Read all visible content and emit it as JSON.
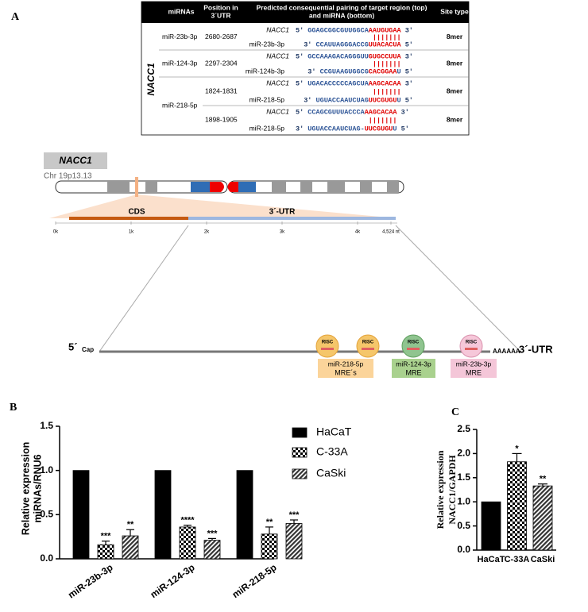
{
  "panel_a": {
    "label": "A",
    "table": {
      "headers": [
        [
          "miRNAs"
        ],
        [
          "Position in",
          "3´UTR"
        ],
        [
          "Predicted consequential pairing of target region (top)",
          "and miRNA (bottom)"
        ],
        [
          "Site type"
        ]
      ],
      "gene": "NACC1",
      "rows": [
        {
          "mirna": "miR-23b-3p",
          "position": "2680-2687",
          "target_name": "NACC1",
          "target_5": "5'",
          "target_seq": "GGAGCGGCGUUGGCA",
          "target_seed": "AAUGUGAA",
          "target_3": "3'",
          "pairing": "|||||||",
          "mirna_name": "miR-23b-3p",
          "mirna_3": "3'",
          "mirna_seq": "CCAUUAGGGACCG",
          "mirna_seed": "UUACACUA",
          "mirna_5": "5'",
          "site": "8mer"
        },
        {
          "mirna": "miR-124-3p",
          "position": "2297-2304",
          "target_name": "NACC1",
          "target_5": "5'",
          "target_seq": "GCCAAAGACAGGGUU",
          "target_seed": "GUGCCUUA",
          "target_3": "3'",
          "pairing": "|||||||",
          "mirna_name": "miR-124b-3p",
          "mirna_3": "3'",
          "mirna_seq": "CCGUAAGUGGCG",
          "mirna_seed": "CACGGAA",
          "mirna_tail": "U",
          "mirna_5": "5'",
          "site": "8mer"
        },
        {
          "mirna": "miR-218-5p",
          "position": "1824-1831",
          "target_name": "NACC1",
          "target_5": "5'",
          "target_seq": "UGACACCCCCAGCUA",
          "target_seed": "AAGCACAA",
          "target_3": "3'",
          "pairing": "|||||||",
          "mirna_name": "miR-218-5p",
          "mirna_3": "3'",
          "mirna_seq": "UGUACCAAUCUAG",
          "mirna_seed": "UUCGUGU",
          "mirna_tail": "U",
          "mirna_5": "5'",
          "site": "8mer"
        },
        {
          "position": "1898-1905",
          "target_name": "NACC1",
          "target_5": "5'",
          "target_seq": "CCAGCGUUUACCCA",
          "target_seed": "AAGCACAA",
          "target_3": "3'",
          "pairing": "|||||||",
          "mirna_name": "miR-218-5p",
          "mirna_3": "3'",
          "mirna_seq": "UGUACCAAUCUAG-",
          "mirna_seed": "UUCGUGU",
          "mirna_tail": "U",
          "mirna_5": "5'",
          "site": "8mer"
        }
      ]
    }
  },
  "diagram": {
    "gene": "NACC1",
    "locus": "Chr 19p13.13",
    "cds": "CDS",
    "utr": "3´-UTR",
    "scale": [
      "0k",
      "1k",
      "2k",
      "3k",
      "4k",
      "4,524 nt"
    ],
    "five_prime": "5´",
    "cap": "Cap",
    "poly_a": "AAAAAA",
    "three_prime": "3´-UTR",
    "risc": [
      "RISC",
      "RISC",
      "RISC",
      "RISC"
    ],
    "mres": [
      {
        "mirna": "miR-218-5p",
        "label": "MRE´s"
      },
      {
        "mirna": "miR-124-3p",
        "label": "MRE"
      },
      {
        "mirna": "miR-23b-3p",
        "label": "MRE"
      }
    ]
  },
  "chart_data": [
    {
      "type": "bar",
      "panel": "B",
      "ylabel": [
        "Relative expression",
        "miRNAs/RNU6"
      ],
      "categories": [
        "miR-23b-3p",
        "miR-124-3p",
        "miR-218-5p"
      ],
      "series": [
        {
          "name": "HaCaT",
          "color": "#000000",
          "pattern": "solid",
          "values": [
            1,
            1,
            1
          ]
        },
        {
          "name": "C-33A",
          "color": "#000000",
          "pattern": "checker",
          "values": [
            0.16,
            0.36,
            0.28
          ],
          "errors": [
            0.04,
            0.02,
            0.08
          ],
          "significance": [
            "***",
            "****",
            "**"
          ]
        },
        {
          "name": "CaSki",
          "color": "#000000",
          "pattern": "hatch",
          "values": [
            0.26,
            0.21,
            0.4
          ],
          "errors": [
            0.07,
            0.02,
            0.04
          ],
          "significance": [
            "**",
            "***",
            "***"
          ]
        }
      ],
      "ylim": [
        0,
        1.5
      ],
      "yticks": [
        {
          "value": 0,
          "label": "0.0"
        },
        {
          "value": 0.5,
          "label": "0.5"
        },
        {
          "value": 1,
          "label": "1.0"
        },
        {
          "value": 1.5,
          "label": "1.5"
        }
      ],
      "legend": "top-right"
    },
    {
      "type": "bar",
      "panel": "C",
      "ylabel": [
        "Relative expression",
        "NACC1/GAPDH"
      ],
      "categories": [
        "HaCaT",
        "C-33A",
        "CaSki"
      ],
      "values": [
        1,
        1.83,
        1.33
      ],
      "errors": [
        null,
        0.17,
        0.04
      ],
      "significance": [
        null,
        "*",
        "**"
      ],
      "colors": [
        "#000000",
        "#000000",
        "#000000"
      ],
      "patterns": [
        "solid",
        "checker",
        "hatch"
      ],
      "ylim": [
        0,
        2.5
      ],
      "yticks": [
        {
          "value": 0,
          "label": "0.0"
        },
        {
          "value": 0.5,
          "label": "0.5"
        },
        {
          "value": 1,
          "label": "1.0"
        },
        {
          "value": 1.5,
          "label": "1.5"
        },
        {
          "value": 2,
          "label": "2.0"
        },
        {
          "value": 2.5,
          "label": "2.5"
        }
      ]
    }
  ]
}
